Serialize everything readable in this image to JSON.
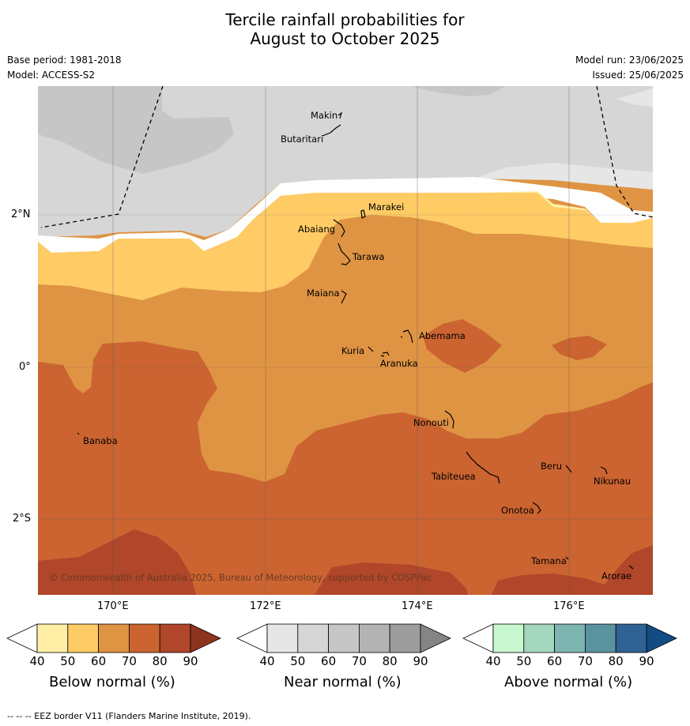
{
  "title_line1": "Tercile rainfall probabilities for",
  "title_line2": "August to October 2025",
  "base_period": "Base period: 1981-2018",
  "model": "Model: ACCESS-S2",
  "model_run": "Model run: 23/06/2025",
  "issued": "Issued: 25/06/2025",
  "lat_labels": [
    "2°N",
    "0°",
    "2°S"
  ],
  "lon_labels": [
    "170°E",
    "172°E",
    "174°E",
    "176°E"
  ],
  "places": [
    "Makin",
    "Butaritari",
    "Marakei",
    "Abaiang",
    "Tarawa",
    "Maiana",
    "Abemama",
    "Kuria",
    "Aranuka",
    "Nonouti",
    "Banaba",
    "Beru",
    "Nikunau",
    "Tabiteuea",
    "Onotoa",
    "Tamana",
    "Arorae"
  ],
  "copyright": "© Commonwealth of Australia 2025, Bureau of Meteorology, supported by COSPPac",
  "colorbars": [
    {
      "title": "Below normal (%)",
      "ticks": [
        "40",
        "50",
        "60",
        "70",
        "80",
        "90"
      ],
      "colors": [
        "#ffefa6",
        "#fecb65",
        "#df9444",
        "#cb6431",
        "#b0462a",
        "#8d3420"
      ]
    },
    {
      "title": "Near normal (%)",
      "ticks": [
        "40",
        "50",
        "60",
        "70",
        "80",
        "90"
      ],
      "colors": [
        "#e6e6e6",
        "#d6d6d6",
        "#c6c6c6",
        "#b3b3b3",
        "#9d9d9d",
        "#858585"
      ]
    },
    {
      "title": "Above normal (%)",
      "ticks": [
        "40",
        "50",
        "60",
        "70",
        "80",
        "90"
      ],
      "colors": [
        "#c9f7cf",
        "#a4d8be",
        "#7db5b0",
        "#5b92a0",
        "#2f6396",
        "#134c84"
      ]
    }
  ],
  "footer": "--  --  -- EEZ border V11 (Flanders Marine Institute, 2019)."
}
